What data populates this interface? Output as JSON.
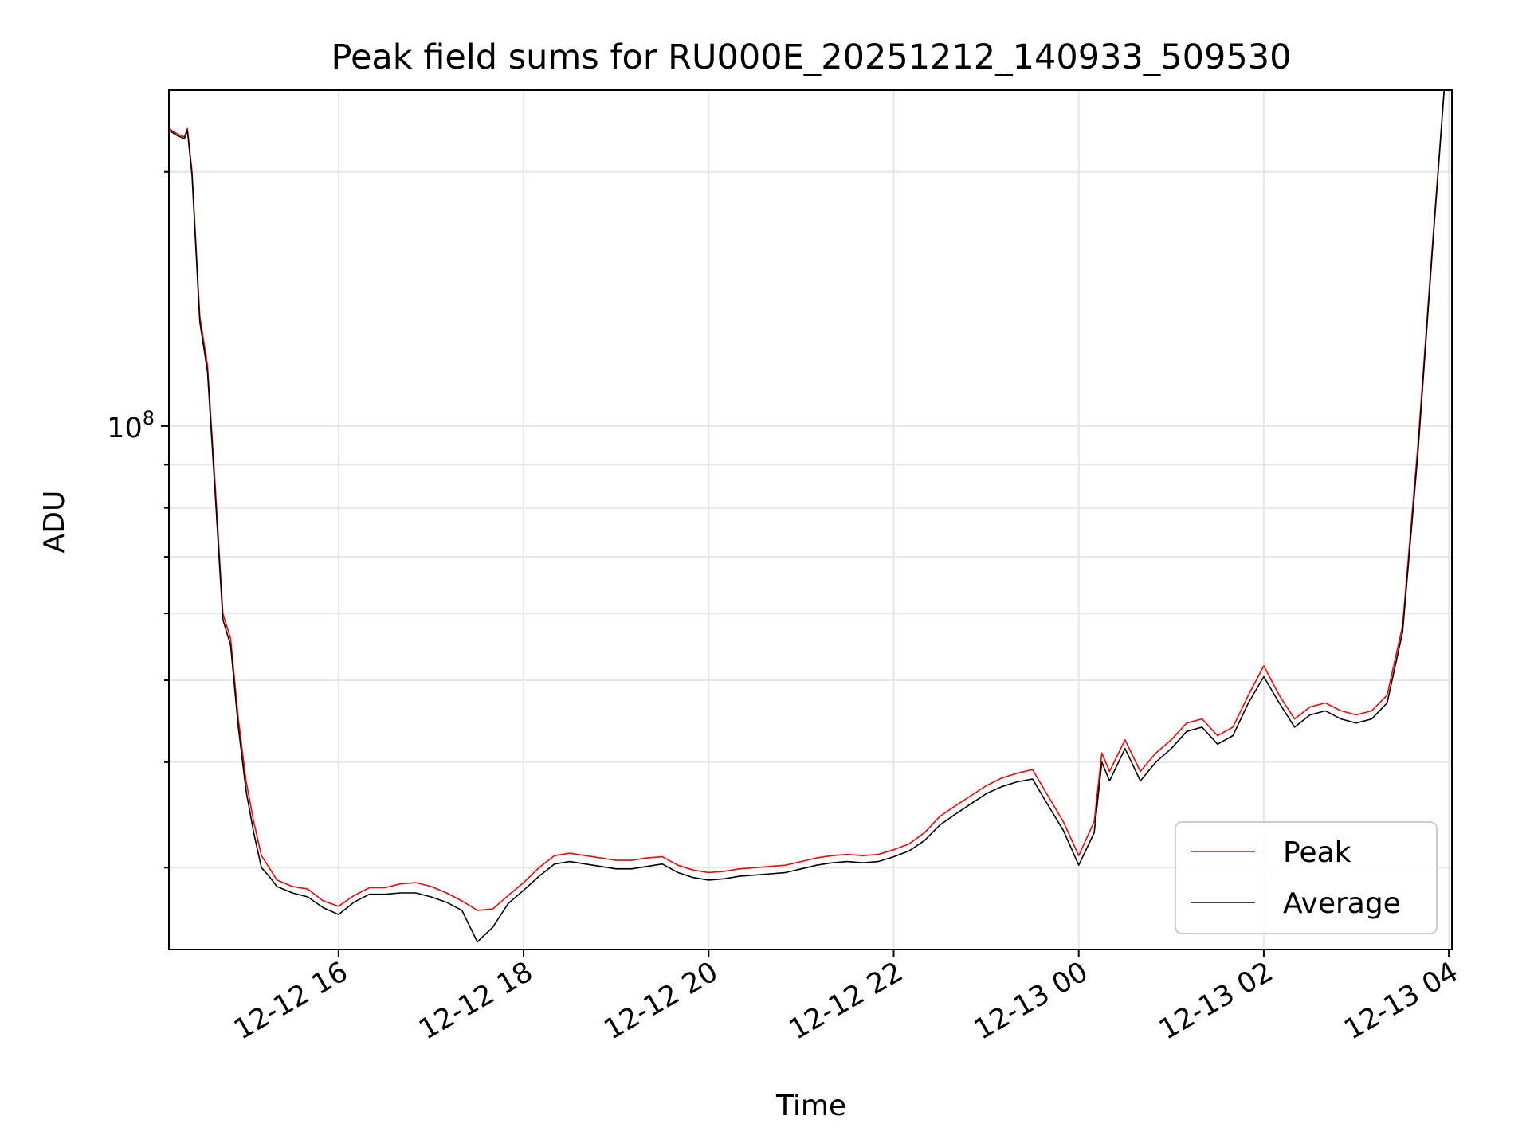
{
  "chart_data": {
    "type": "line",
    "title": "Peak field sums for RU000E_20251212_140933_509530",
    "xlabel": "Time",
    "ylabel": "ADU",
    "y_scale": "log",
    "y_tick_labels": [
      {
        "base": "10",
        "exp": "8",
        "value": 100000000
      }
    ],
    "ylim": [
      24000000,
      250000000
    ],
    "xlim": [
      "2025-12-12 14:10",
      "2025-12-13 04:02"
    ],
    "x_ticks": [
      {
        "label": "12-12 16",
        "value": "2025-12-12 16:00"
      },
      {
        "label": "12-12 18",
        "value": "2025-12-12 18:00"
      },
      {
        "label": "12-12 20",
        "value": "2025-12-12 20:00"
      },
      {
        "label": "12-12 22",
        "value": "2025-12-12 22:00"
      },
      {
        "label": "12-13 00",
        "value": "2025-12-13 00:00"
      },
      {
        "label": "12-13 02",
        "value": "2025-12-13 02:00"
      },
      {
        "label": "12-13 04",
        "value": "2025-12-13 04:00"
      }
    ],
    "grid": true,
    "legend_position": "lower-right",
    "series": [
      {
        "name": "Peak",
        "color": "#ff0000",
        "points": [
          [
            "2025-12-12 14:10",
            225000000
          ],
          [
            "2025-12-12 14:15",
            222000000
          ],
          [
            "2025-12-12 14:20",
            220000000
          ],
          [
            "2025-12-12 14:22",
            225000000
          ],
          [
            "2025-12-12 14:25",
            200000000
          ],
          [
            "2025-12-12 14:30",
            135000000
          ],
          [
            "2025-12-12 14:35",
            118000000
          ],
          [
            "2025-12-12 14:40",
            85000000
          ],
          [
            "2025-12-12 14:45",
            60000000
          ],
          [
            "2025-12-12 14:50",
            56000000
          ],
          [
            "2025-12-12 14:55",
            45000000
          ],
          [
            "2025-12-12 15:00",
            38000000
          ],
          [
            "2025-12-12 15:05",
            34000000
          ],
          [
            "2025-12-12 15:10",
            31000000
          ],
          [
            "2025-12-12 15:15",
            30000000
          ],
          [
            "2025-12-12 15:20",
            29000000
          ],
          [
            "2025-12-12 15:30",
            28500000
          ],
          [
            "2025-12-12 15:40",
            28300000
          ],
          [
            "2025-12-12 15:50",
            27400000
          ],
          [
            "2025-12-12 16:00",
            27000000
          ],
          [
            "2025-12-12 16:10",
            27800000
          ],
          [
            "2025-12-12 16:20",
            28400000
          ],
          [
            "2025-12-12 16:30",
            28400000
          ],
          [
            "2025-12-12 16:40",
            28700000
          ],
          [
            "2025-12-12 16:50",
            28800000
          ],
          [
            "2025-12-12 17:00",
            28500000
          ],
          [
            "2025-12-12 17:10",
            28000000
          ],
          [
            "2025-12-12 17:20",
            27400000
          ],
          [
            "2025-12-12 17:30",
            26700000
          ],
          [
            "2025-12-12 17:40",
            26800000
          ],
          [
            "2025-12-12 17:50",
            27800000
          ],
          [
            "2025-12-12 18:00",
            28800000
          ],
          [
            "2025-12-12 18:10",
            30000000
          ],
          [
            "2025-12-12 18:20",
            31000000
          ],
          [
            "2025-12-12 18:30",
            31200000
          ],
          [
            "2025-12-12 18:40",
            31000000
          ],
          [
            "2025-12-12 18:50",
            30800000
          ],
          [
            "2025-12-12 19:00",
            30600000
          ],
          [
            "2025-12-12 19:10",
            30600000
          ],
          [
            "2025-12-12 19:20",
            30800000
          ],
          [
            "2025-12-12 19:30",
            30900000
          ],
          [
            "2025-12-12 19:40",
            30200000
          ],
          [
            "2025-12-12 19:50",
            29800000
          ],
          [
            "2025-12-12 20:00",
            29600000
          ],
          [
            "2025-12-12 20:10",
            29700000
          ],
          [
            "2025-12-12 20:20",
            29900000
          ],
          [
            "2025-12-12 20:30",
            30000000
          ],
          [
            "2025-12-12 20:40",
            30100000
          ],
          [
            "2025-12-12 20:50",
            30200000
          ],
          [
            "2025-12-12 21:00",
            30500000
          ],
          [
            "2025-12-12 21:10",
            30800000
          ],
          [
            "2025-12-12 21:20",
            31000000
          ],
          [
            "2025-12-12 21:30",
            31100000
          ],
          [
            "2025-12-12 21:40",
            31000000
          ],
          [
            "2025-12-12 21:50",
            31100000
          ],
          [
            "2025-12-12 22:00",
            31500000
          ],
          [
            "2025-12-12 22:10",
            32000000
          ],
          [
            "2025-12-12 22:20",
            33000000
          ],
          [
            "2025-12-12 22:30",
            34500000
          ],
          [
            "2025-12-12 22:40",
            35500000
          ],
          [
            "2025-12-12 22:50",
            36500000
          ],
          [
            "2025-12-12 23:00",
            37500000
          ],
          [
            "2025-12-12 23:10",
            38300000
          ],
          [
            "2025-12-12 23:20",
            38800000
          ],
          [
            "2025-12-12 23:30",
            39200000
          ],
          [
            "2025-12-12 23:40",
            36500000
          ],
          [
            "2025-12-12 23:50",
            34000000
          ],
          [
            "2025-12-13 00:00",
            31000000
          ],
          [
            "2025-12-13 00:10",
            34000000
          ],
          [
            "2025-12-13 00:15",
            41000000
          ],
          [
            "2025-12-13 00:20",
            39000000
          ],
          [
            "2025-12-13 00:30",
            42500000
          ],
          [
            "2025-12-13 00:40",
            39000000
          ],
          [
            "2025-12-13 00:50",
            41000000
          ],
          [
            "2025-12-13 01:00",
            42500000
          ],
          [
            "2025-12-13 01:10",
            44500000
          ],
          [
            "2025-12-13 01:20",
            45000000
          ],
          [
            "2025-12-13 01:30",
            43000000
          ],
          [
            "2025-12-13 01:40",
            44000000
          ],
          [
            "2025-12-13 01:50",
            48000000
          ],
          [
            "2025-12-13 02:00",
            52000000
          ],
          [
            "2025-12-13 02:10",
            48000000
          ],
          [
            "2025-12-13 02:20",
            45000000
          ],
          [
            "2025-12-13 02:30",
            46500000
          ],
          [
            "2025-12-13 02:40",
            47000000
          ],
          [
            "2025-12-13 02:50",
            46000000
          ],
          [
            "2025-12-13 03:00",
            45500000
          ],
          [
            "2025-12-13 03:10",
            46000000
          ],
          [
            "2025-12-13 03:20",
            48000000
          ],
          [
            "2025-12-13 03:30",
            58000000
          ],
          [
            "2025-12-13 03:40",
            95000000
          ],
          [
            "2025-12-13 03:50",
            170000000
          ],
          [
            "2025-12-13 03:57",
            250000000
          ]
        ]
      },
      {
        "name": "Average",
        "color": "#000000",
        "points": [
          [
            "2025-12-12 14:10",
            224000000
          ],
          [
            "2025-12-12 14:15",
            221000000
          ],
          [
            "2025-12-12 14:20",
            219000000
          ],
          [
            "2025-12-12 14:22",
            224000000
          ],
          [
            "2025-12-12 14:25",
            198000000
          ],
          [
            "2025-12-12 14:30",
            133000000
          ],
          [
            "2025-12-12 14:35",
            116000000
          ],
          [
            "2025-12-12 14:40",
            83000000
          ],
          [
            "2025-12-12 14:45",
            59000000
          ],
          [
            "2025-12-12 14:50",
            55000000
          ],
          [
            "2025-12-12 14:55",
            44000000
          ],
          [
            "2025-12-12 15:00",
            37000000
          ],
          [
            "2025-12-12 15:05",
            33000000
          ],
          [
            "2025-12-12 15:10",
            30000000
          ],
          [
            "2025-12-12 15:15",
            29300000
          ],
          [
            "2025-12-12 15:20",
            28500000
          ],
          [
            "2025-12-12 15:30",
            28000000
          ],
          [
            "2025-12-12 15:40",
            27700000
          ],
          [
            "2025-12-12 15:50",
            26900000
          ],
          [
            "2025-12-12 16:00",
            26400000
          ],
          [
            "2025-12-12 16:10",
            27300000
          ],
          [
            "2025-12-12 16:20",
            27900000
          ],
          [
            "2025-12-12 16:30",
            27900000
          ],
          [
            "2025-12-12 16:40",
            28000000
          ],
          [
            "2025-12-12 16:50",
            28000000
          ],
          [
            "2025-12-12 17:00",
            27700000
          ],
          [
            "2025-12-12 17:10",
            27300000
          ],
          [
            "2025-12-12 17:20",
            26700000
          ],
          [
            "2025-12-12 17:30",
            24500000
          ],
          [
            "2025-12-12 17:40",
            25500000
          ],
          [
            "2025-12-12 17:50",
            27200000
          ],
          [
            "2025-12-12 18:00",
            28200000
          ],
          [
            "2025-12-12 18:10",
            29300000
          ],
          [
            "2025-12-12 18:20",
            30300000
          ],
          [
            "2025-12-12 18:30",
            30500000
          ],
          [
            "2025-12-12 18:40",
            30300000
          ],
          [
            "2025-12-12 18:50",
            30100000
          ],
          [
            "2025-12-12 19:00",
            29900000
          ],
          [
            "2025-12-12 19:10",
            29900000
          ],
          [
            "2025-12-12 19:20",
            30100000
          ],
          [
            "2025-12-12 19:30",
            30300000
          ],
          [
            "2025-12-12 19:40",
            29600000
          ],
          [
            "2025-12-12 19:50",
            29200000
          ],
          [
            "2025-12-12 20:00",
            29000000
          ],
          [
            "2025-12-12 20:10",
            29100000
          ],
          [
            "2025-12-12 20:20",
            29300000
          ],
          [
            "2025-12-12 20:30",
            29400000
          ],
          [
            "2025-12-12 20:40",
            29500000
          ],
          [
            "2025-12-12 20:50",
            29600000
          ],
          [
            "2025-12-12 21:00",
            29900000
          ],
          [
            "2025-12-12 21:10",
            30200000
          ],
          [
            "2025-12-12 21:20",
            30400000
          ],
          [
            "2025-12-12 21:30",
            30500000
          ],
          [
            "2025-12-12 21:40",
            30400000
          ],
          [
            "2025-12-12 21:50",
            30500000
          ],
          [
            "2025-12-12 22:00",
            30900000
          ],
          [
            "2025-12-12 22:10",
            31400000
          ],
          [
            "2025-12-12 22:20",
            32300000
          ],
          [
            "2025-12-12 22:30",
            33700000
          ],
          [
            "2025-12-12 22:40",
            34700000
          ],
          [
            "2025-12-12 22:50",
            35700000
          ],
          [
            "2025-12-12 23:00",
            36700000
          ],
          [
            "2025-12-12 23:10",
            37400000
          ],
          [
            "2025-12-12 23:20",
            37900000
          ],
          [
            "2025-12-12 23:30",
            38200000
          ],
          [
            "2025-12-12 23:40",
            35600000
          ],
          [
            "2025-12-12 23:50",
            33200000
          ],
          [
            "2025-12-13 00:00",
            30200000
          ],
          [
            "2025-12-13 00:10",
            33000000
          ],
          [
            "2025-12-13 00:15",
            40000000
          ],
          [
            "2025-12-13 00:20",
            38000000
          ],
          [
            "2025-12-13 00:30",
            41500000
          ],
          [
            "2025-12-13 00:40",
            38000000
          ],
          [
            "2025-12-13 00:50",
            40000000
          ],
          [
            "2025-12-13 01:00",
            41500000
          ],
          [
            "2025-12-13 01:10",
            43500000
          ],
          [
            "2025-12-13 01:20",
            44000000
          ],
          [
            "2025-12-13 01:30",
            42000000
          ],
          [
            "2025-12-13 01:40",
            43000000
          ],
          [
            "2025-12-13 01:50",
            47000000
          ],
          [
            "2025-12-13 02:00",
            50500000
          ],
          [
            "2025-12-13 02:10",
            47000000
          ],
          [
            "2025-12-13 02:20",
            44000000
          ],
          [
            "2025-12-13 02:30",
            45500000
          ],
          [
            "2025-12-13 02:40",
            46000000
          ],
          [
            "2025-12-13 02:50",
            45000000
          ],
          [
            "2025-12-13 03:00",
            44500000
          ],
          [
            "2025-12-13 03:10",
            45000000
          ],
          [
            "2025-12-13 03:20",
            47000000
          ],
          [
            "2025-12-13 03:30",
            57000000
          ],
          [
            "2025-12-13 03:40",
            93000000
          ],
          [
            "2025-12-13 03:50",
            168000000
          ],
          [
            "2025-12-13 03:57",
            250000000
          ]
        ]
      }
    ]
  }
}
